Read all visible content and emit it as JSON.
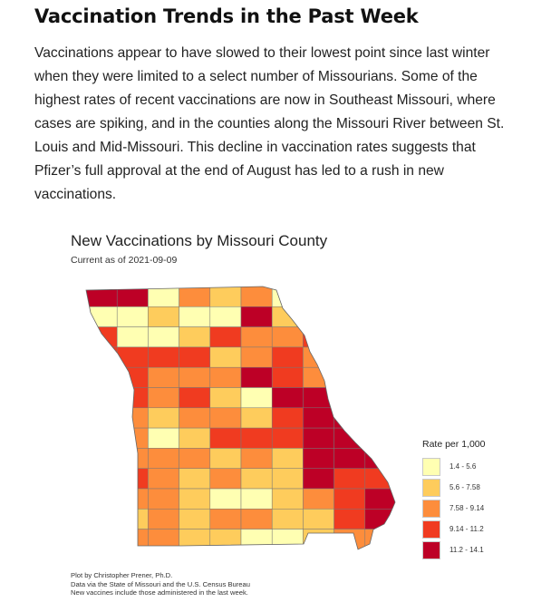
{
  "article": {
    "heading": "Vaccination Trends in the Past Week",
    "paragraph": "Vaccinations appear to have slowed to their lowest point since last winter when they were limited to a select number of Missourians. Some of the highest rates of recent vaccinations are now in Southeast Missouri, where cases are spiking, and in the counties along the Missouri River between St. Louis and Mid-Missouri. This decline in vaccination rates suggests that Pfizer’s full approval at the end of August has led to a rush in new vaccinations."
  },
  "figure": {
    "title": "New Vaccinations by Missouri County",
    "subtitle": "Current as of 2021-09-09",
    "legend_title": "Rate per 1,000",
    "classes": [
      {
        "label": "1.4 - 5.6",
        "color": "#ffffb2"
      },
      {
        "label": "5.6 - 7.58",
        "color": "#fecc5c"
      },
      {
        "label": "7.58 - 9.14",
        "color": "#fd8d3c"
      },
      {
        "label": "9.14 - 11.2",
        "color": "#f03b20"
      },
      {
        "label": "11.2 - 14.1",
        "color": "#bd0026"
      }
    ],
    "captions": [
      "Plot by Christopher Prener, Ph.D.",
      "Data via the State of Missouri and the U.S. Census Bureau",
      "New vaccines include those administered in the last week."
    ]
  }
}
